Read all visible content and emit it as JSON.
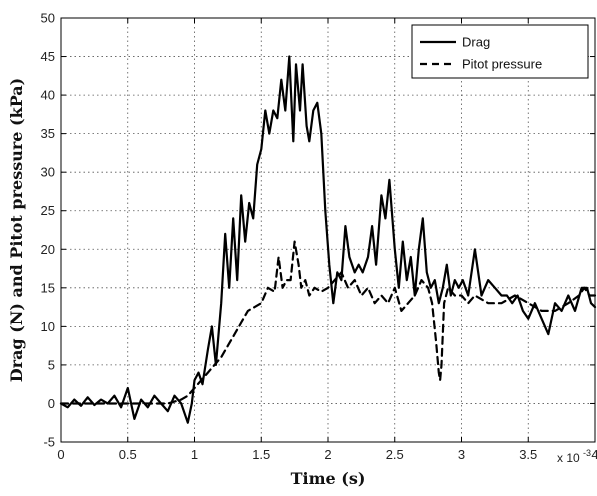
{
  "chart_data": {
    "type": "line",
    "xlabel": "Time (s)",
    "ylabel": "Drag (N) and Pitot pressure (kPa)",
    "x_multiplier_label": "x 10",
    "x_multiplier_exp": "-3",
    "xlim": [
      0,
      4
    ],
    "ylim": [
      -5,
      50
    ],
    "xticks": [
      0,
      0.5,
      1,
      1.5,
      2,
      2.5,
      3,
      3.5,
      4
    ],
    "xtick_labels": [
      "0",
      "0.5",
      "1",
      "1.5",
      "2",
      "2.5",
      "3",
      "3.5",
      "4"
    ],
    "yticks": [
      -5,
      0,
      5,
      10,
      15,
      20,
      25,
      30,
      35,
      40,
      45,
      50
    ],
    "ytick_labels": [
      "-5",
      "0",
      "5",
      "10",
      "15",
      "20",
      "25",
      "30",
      "35",
      "40",
      "45",
      "50"
    ],
    "grid": true,
    "legend_position": "top-right",
    "series": [
      {
        "name": "Drag",
        "style": "solid",
        "color": "#000000",
        "x": [
          0,
          0.05,
          0.1,
          0.15,
          0.2,
          0.25,
          0.3,
          0.35,
          0.4,
          0.45,
          0.5,
          0.55,
          0.6,
          0.65,
          0.7,
          0.75,
          0.8,
          0.85,
          0.9,
          0.95,
          0.98,
          1.0,
          1.03,
          1.06,
          1.1,
          1.13,
          1.16,
          1.2,
          1.23,
          1.26,
          1.29,
          1.32,
          1.35,
          1.38,
          1.41,
          1.44,
          1.47,
          1.5,
          1.53,
          1.56,
          1.59,
          1.62,
          1.65,
          1.68,
          1.71,
          1.74,
          1.76,
          1.79,
          1.81,
          1.84,
          1.86,
          1.89,
          1.92,
          1.95,
          1.98,
          2.01,
          2.04,
          2.07,
          2.1,
          2.13,
          2.16,
          2.2,
          2.23,
          2.26,
          2.3,
          2.33,
          2.36,
          2.4,
          2.43,
          2.46,
          2.5,
          2.53,
          2.56,
          2.59,
          2.62,
          2.65,
          2.68,
          2.71,
          2.74,
          2.77,
          2.8,
          2.83,
          2.86,
          2.89,
          2.92,
          2.95,
          2.98,
          3.01,
          3.05,
          3.1,
          3.15,
          3.2,
          3.25,
          3.3,
          3.34,
          3.38,
          3.42,
          3.46,
          3.5,
          3.55,
          3.6,
          3.65,
          3.7,
          3.75,
          3.8,
          3.85,
          3.9,
          3.94,
          3.97,
          4.0
        ],
        "y": [
          0,
          -0.5,
          0.5,
          -0.3,
          0.8,
          -0.2,
          0.5,
          0,
          1.0,
          -0.5,
          2,
          -2,
          0.5,
          -0.5,
          1,
          0,
          -1,
          1,
          0,
          -2.5,
          0,
          3,
          4,
          2.5,
          7,
          10,
          5,
          13,
          22,
          15,
          24,
          16,
          27,
          21,
          26,
          24,
          31,
          33,
          38,
          35,
          38,
          37,
          42,
          38,
          45,
          34,
          44,
          38,
          44,
          36,
          34,
          38,
          39,
          35,
          25,
          18,
          13,
          17,
          16,
          23,
          19,
          17,
          18,
          17,
          19,
          23,
          18,
          27,
          24,
          29,
          20,
          15,
          21,
          16,
          19,
          14,
          20,
          24,
          17,
          15,
          16,
          13,
          15,
          18,
          14,
          16,
          15,
          16,
          14,
          20,
          14,
          16,
          15,
          14,
          14,
          13,
          14,
          12,
          11,
          13,
          11,
          9,
          13,
          12,
          14,
          12,
          15,
          15,
          13,
          12.5
        ]
      },
      {
        "name": "Pitot pressure",
        "style": "dashed",
        "color": "#000000",
        "x": [
          0,
          0.1,
          0.2,
          0.3,
          0.4,
          0.5,
          0.6,
          0.7,
          0.8,
          0.9,
          0.95,
          1.0,
          1.05,
          1.1,
          1.15,
          1.2,
          1.25,
          1.3,
          1.35,
          1.4,
          1.45,
          1.5,
          1.55,
          1.6,
          1.63,
          1.66,
          1.69,
          1.72,
          1.75,
          1.78,
          1.8,
          1.83,
          1.86,
          1.9,
          1.95,
          2.0,
          2.05,
          2.1,
          2.15,
          2.2,
          2.25,
          2.3,
          2.35,
          2.4,
          2.45,
          2.5,
          2.55,
          2.6,
          2.65,
          2.7,
          2.75,
          2.78,
          2.81,
          2.83,
          2.84,
          2.85,
          2.87,
          2.9,
          2.95,
          3.0,
          3.05,
          3.1,
          3.2,
          3.3,
          3.4,
          3.5,
          3.6,
          3.7,
          3.8,
          3.88,
          3.92,
          3.96,
          4.0
        ],
        "y": [
          0,
          0,
          0,
          0,
          0,
          0,
          0,
          0,
          0,
          0.5,
          1,
          2,
          3,
          4,
          5,
          6,
          7.5,
          9,
          10.5,
          12,
          12.5,
          13,
          15,
          14.5,
          19,
          15,
          16,
          16,
          21,
          18,
          15,
          16,
          14,
          15,
          14.5,
          15,
          16,
          17,
          15,
          16,
          14,
          15,
          13,
          14,
          13,
          15,
          12,
          13,
          14,
          16,
          15,
          13,
          8,
          4,
          3,
          5,
          13,
          15,
          14,
          14,
          13,
          14,
          13,
          13,
          14,
          13,
          12,
          12,
          13,
          14,
          15,
          14,
          14
        ]
      }
    ]
  }
}
